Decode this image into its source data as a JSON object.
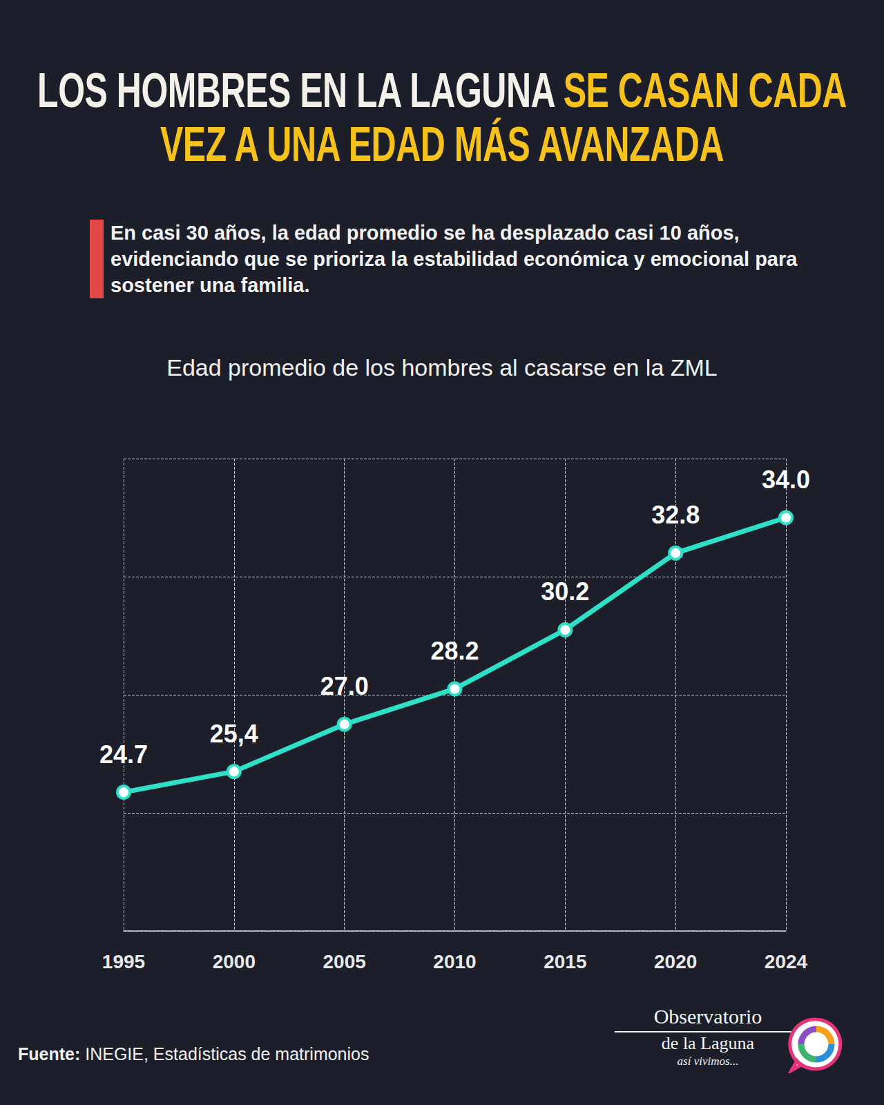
{
  "headline": "LOS HOMBRES EN LA LAGUNA",
  "headline_highlight": "SE CASAN CADA VEZ A UNA EDAD MÁS AVANZADA",
  "lead": "En casi 30 años, la edad promedio se ha desplazado casi 10 años, evidenciando que se prioriza la estabilidad económica y emocional para sostener una familia.",
  "source": {
    "label": "Fuente:",
    "text": "INEGIE, Estadísticas de matrimonios"
  },
  "brand": {
    "lines": [
      "Observatorio",
      "de la Laguna"
    ],
    "tagline": "así vivimos..."
  },
  "chart_data": {
    "type": "line",
    "title": "Edad promedio de los hombres al casarse en la ZML",
    "categories": [
      "1995",
      "2000",
      "2005",
      "2010",
      "2015",
      "2020",
      "2024"
    ],
    "values": [
      24.7,
      25.4,
      27.0,
      28.2,
      30.2,
      32.8,
      34.0
    ],
    "value_labels": [
      "24.7",
      "25,4",
      "27.0",
      "28.2",
      "30.2",
      "32.8",
      "34.0"
    ],
    "color": "#2fe0c9",
    "marker": "circle",
    "line_style": "solid",
    "ylim": [
      20,
      36
    ],
    "yticks": [
      20,
      24,
      28,
      32,
      36
    ],
    "grid": true,
    "data_labels": true,
    "tick_labels": "x"
  }
}
